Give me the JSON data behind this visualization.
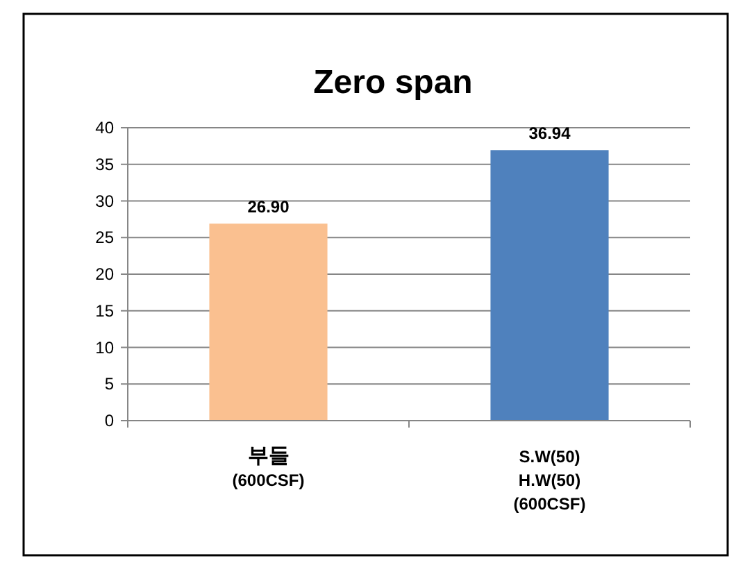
{
  "chart_data": {
    "type": "bar",
    "title": "Zero span",
    "categories": [
      "부들\n(600CSF)",
      "S.W(50)\nH.W(50)\n(600CSF)"
    ],
    "values": [
      26.9,
      36.94
    ],
    "colors": [
      "#fac090",
      "#4f81bd"
    ],
    "value_labels": [
      "26.90",
      "36.94"
    ],
    "ylim": [
      0,
      40
    ],
    "yticks": [
      0,
      5,
      10,
      15,
      20,
      25,
      30,
      35,
      40
    ],
    "grid": "y"
  }
}
